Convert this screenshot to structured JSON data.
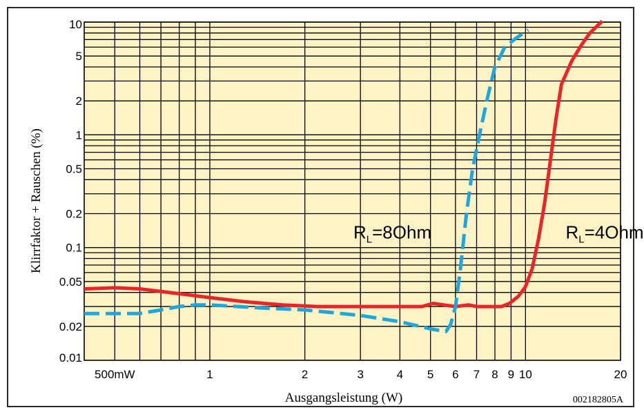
{
  "chart_data": {
    "type": "line",
    "xlabel": "Ausgangsleistung (W)",
    "ylabel": "Klirrfaktor + Rauschen (%)",
    "code": "002182805A",
    "x_scale": "log",
    "y_scale": "log",
    "xlim": [
      0.4,
      20
    ],
    "ylim": [
      0.01,
      10
    ],
    "x_ticks": [
      {
        "value": 0.5,
        "label": "500mW"
      },
      {
        "value": 1,
        "label": "1"
      },
      {
        "value": 2,
        "label": "2"
      },
      {
        "value": 3,
        "label": "3"
      },
      {
        "value": 4,
        "label": "4"
      },
      {
        "value": 5,
        "label": "5"
      },
      {
        "value": 6,
        "label": "6"
      },
      {
        "value": 7,
        "label": "7"
      },
      {
        "value": 8,
        "label": "8"
      },
      {
        "value": 9,
        "label": "9"
      },
      {
        "value": 10,
        "label": "10"
      },
      {
        "value": 20,
        "label": "20"
      }
    ],
    "y_ticks": [
      {
        "value": 10,
        "label": "10"
      },
      {
        "value": 5,
        "label": "5"
      },
      {
        "value": 2,
        "label": "2"
      },
      {
        "value": 1,
        "label": "1"
      },
      {
        "value": 0.5,
        "label": "0.5"
      },
      {
        "value": 0.2,
        "label": "0.2"
      },
      {
        "value": 0.1,
        "label": "0.1"
      },
      {
        "value": 0.05,
        "label": "0.05"
      },
      {
        "value": 0.02,
        "label": "0.02"
      },
      {
        "value": 0.01,
        "label": "0.01"
      }
    ],
    "x_grid": [
      0.5,
      0.6,
      0.7,
      0.8,
      0.9,
      1,
      2,
      3,
      4,
      5,
      6,
      7,
      8,
      9,
      10
    ],
    "y_grid": [
      0.02,
      0.03,
      0.04,
      0.05,
      0.06,
      0.07,
      0.08,
      0.09,
      0.1,
      0.2,
      0.3,
      0.4,
      0.5,
      0.6,
      0.7,
      0.8,
      0.9,
      1,
      2,
      3,
      4,
      5,
      6,
      7,
      8,
      9,
      10
    ],
    "grid": true,
    "series": [
      {
        "name_main": "R",
        "name_sub": "L",
        "name_rest": "=4Ohm",
        "color": "#e8262a",
        "dash": false,
        "label_at": [
          13.4,
          0.12
        ],
        "points": [
          [
            0.4,
            0.043
          ],
          [
            0.5,
            0.044
          ],
          [
            0.6,
            0.043
          ],
          [
            0.8,
            0.039
          ],
          [
            1.0,
            0.036
          ],
          [
            1.3,
            0.033
          ],
          [
            1.7,
            0.031
          ],
          [
            2.2,
            0.03
          ],
          [
            3.0,
            0.03
          ],
          [
            4.0,
            0.03
          ],
          [
            4.7,
            0.03
          ],
          [
            5.1,
            0.032
          ],
          [
            5.5,
            0.031
          ],
          [
            6.0,
            0.03
          ],
          [
            6.6,
            0.031
          ],
          [
            7.0,
            0.03
          ],
          [
            7.8,
            0.03
          ],
          [
            8.4,
            0.03
          ],
          [
            8.9,
            0.032
          ],
          [
            9.5,
            0.037
          ],
          [
            10.0,
            0.045
          ],
          [
            10.5,
            0.065
          ],
          [
            11.0,
            0.12
          ],
          [
            11.5,
            0.25
          ],
          [
            12.0,
            0.6
          ],
          [
            12.5,
            1.4
          ],
          [
            13.0,
            2.8
          ],
          [
            14.0,
            4.5
          ],
          [
            15.0,
            6.2
          ],
          [
            16.0,
            8.0
          ],
          [
            17.5,
            10.2
          ]
        ]
      },
      {
        "name_main": "R",
        "name_sub": "L",
        "name_rest": "=8Ohm",
        "color": "#1ea7dc",
        "dash": true,
        "label_at": [
          2.85,
          0.12
        ],
        "points": [
          [
            0.4,
            0.026
          ],
          [
            0.5,
            0.026
          ],
          [
            0.6,
            0.026
          ],
          [
            0.7,
            0.028
          ],
          [
            0.8,
            0.03
          ],
          [
            0.9,
            0.031
          ],
          [
            1.0,
            0.031
          ],
          [
            1.5,
            0.029
          ],
          [
            2.0,
            0.028
          ],
          [
            3.0,
            0.025
          ],
          [
            4.0,
            0.022
          ],
          [
            5.0,
            0.019
          ],
          [
            5.6,
            0.018
          ],
          [
            5.8,
            0.021
          ],
          [
            6.0,
            0.03
          ],
          [
            6.2,
            0.06
          ],
          [
            6.5,
            0.2
          ],
          [
            6.8,
            0.5
          ],
          [
            7.2,
            1.1
          ],
          [
            7.6,
            2.2
          ],
          [
            8.0,
            4.0
          ],
          [
            8.6,
            6.0
          ],
          [
            9.4,
            7.3
          ],
          [
            10.2,
            8.5
          ]
        ]
      }
    ]
  }
}
